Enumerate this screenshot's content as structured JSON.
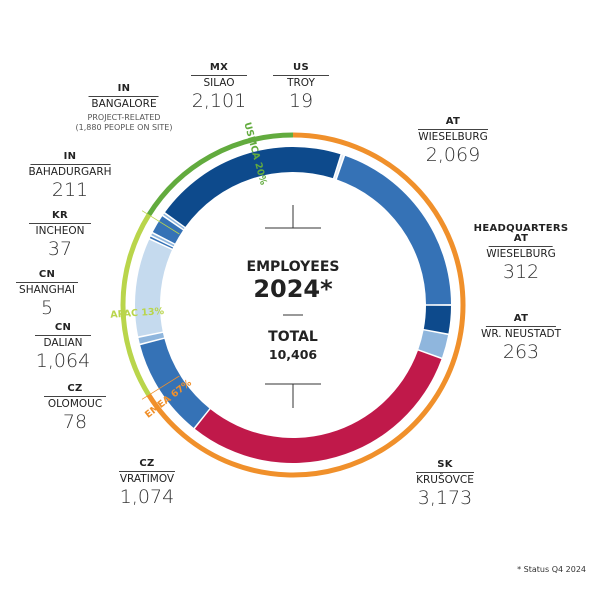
{
  "center": {
    "title": "EMPLOYEES",
    "year": "2024*",
    "total_label": "TOTAL",
    "total_value": "10,406"
  },
  "footnote": "* Status Q4 2024",
  "chart_data": {
    "type": "pie",
    "title": "EMPLOYEES 2024*",
    "total": 10406,
    "segments": [
      {
        "code": "US",
        "city": "TROY",
        "value": 19,
        "display": "19",
        "color": "#e3ebf5"
      },
      {
        "code": "AT",
        "city": "WIESELBURG",
        "value": 2069,
        "display": "2,069",
        "color": "#3572b6"
      },
      {
        "code": "HEADQUARTERS AT",
        "city": "WIESELBURG",
        "value": 312,
        "display": "312",
        "color": "#0d4a8c"
      },
      {
        "code": "AT",
        "city": "WR. NEUSTADT",
        "value": 263,
        "display": "263",
        "color": "#8fb6dd"
      },
      {
        "code": "SK",
        "city": "KRUŠOVCE",
        "value": 3173,
        "display": "3,173",
        "color": "#c0194a"
      },
      {
        "code": "CZ",
        "city": "VRATIMOV",
        "value": 1074,
        "display": "1,074",
        "color": "#3572b6"
      },
      {
        "code": "CZ",
        "city": "OLOMOUC",
        "value": 78,
        "display": "78",
        "color": "#8fb6dd"
      },
      {
        "code": "CN",
        "city": "DALIAN",
        "value": 1064,
        "display": "1,064",
        "color": "#c5daee"
      },
      {
        "code": "CN",
        "city": "SHANGHAI",
        "value": 5,
        "display": "5",
        "color": "#3572b6"
      },
      {
        "code": "KR",
        "city": "INCHEON",
        "value": 37,
        "display": "37",
        "color": "#8fb6dd"
      },
      {
        "code": "IN",
        "city": "BAHADURGARH",
        "value": 211,
        "display": "211",
        "color": "#3572b6"
      },
      {
        "code": "IN",
        "city": "BANGALORE",
        "value": 0,
        "display": "",
        "color": "#8fb6dd",
        "note": "PROJECT-RELATED (1,880 PEOPLE ON SITE)"
      },
      {
        "code": "MX",
        "city": "SILAO",
        "value": 2101,
        "display": "2,101",
        "color": "#0d4a8c"
      }
    ],
    "regions": [
      {
        "name": "USMCA",
        "percent": "20%",
        "color": "#62ab3e"
      },
      {
        "name": "EMEA",
        "percent": "67%",
        "color": "#f0902b"
      },
      {
        "name": "APAC",
        "percent": "13%",
        "color": "#b9d54b"
      }
    ]
  }
}
